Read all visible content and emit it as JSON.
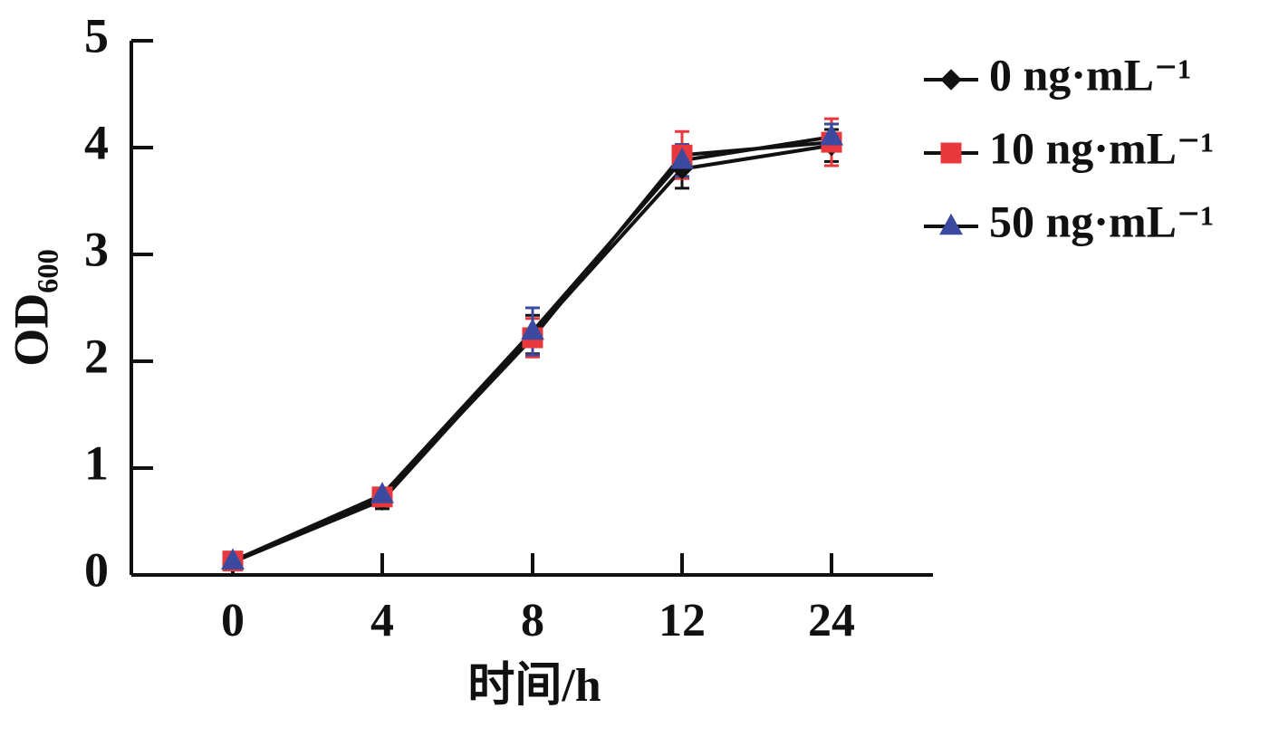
{
  "chart_data": {
    "type": "line",
    "x_label": "时间/h",
    "y_label": "OD₆₀₀",
    "categories": [
      "0",
      "4",
      "8",
      "12",
      "24"
    ],
    "ylim": [
      0,
      5
    ],
    "yticks": [
      0,
      1,
      2,
      3,
      4,
      5
    ],
    "legend": "top-right",
    "series": [
      {
        "name": "0 ng·mL⁻¹",
        "color": "#111111",
        "marker": "diamond",
        "values": [
          0.12,
          0.7,
          2.25,
          3.8,
          4.02
        ],
        "errors": [
          0.04,
          0.08,
          0.18,
          0.18,
          0.15
        ]
      },
      {
        "name": "10 ng·mL⁻¹",
        "color": "#e8383d",
        "marker": "square",
        "values": [
          0.13,
          0.73,
          2.22,
          3.93,
          4.05
        ],
        "errors": [
          0.04,
          0.06,
          0.18,
          0.22,
          0.22
        ]
      },
      {
        "name": "50 ng·mL⁻¹",
        "color": "#3b4a9e",
        "marker": "triangle",
        "values": [
          0.13,
          0.75,
          2.28,
          3.88,
          4.1
        ],
        "errors": [
          0.04,
          0.06,
          0.22,
          0.15,
          0.12
        ]
      }
    ]
  }
}
